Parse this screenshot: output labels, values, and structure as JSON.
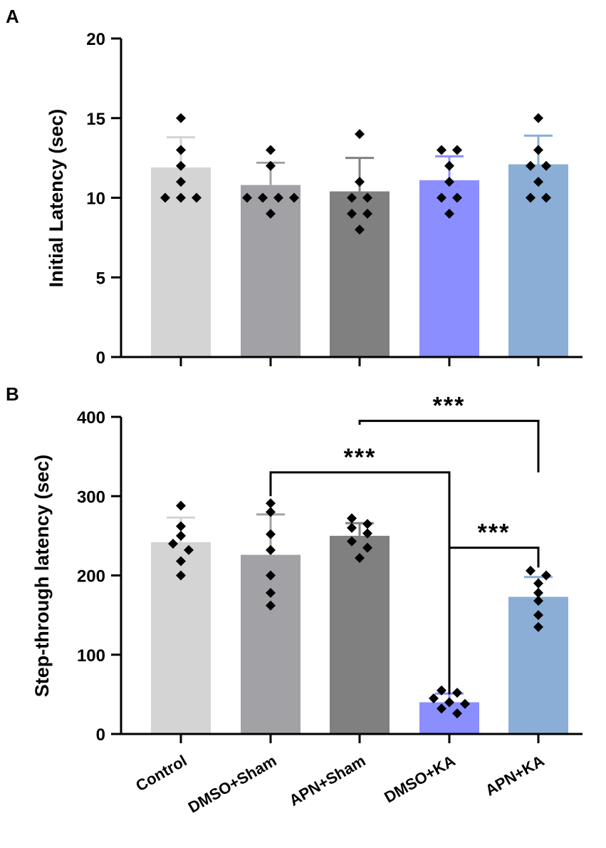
{
  "colors": {
    "bars": [
      "#d4d4d4",
      "#a2a2a6",
      "#808080",
      "#8a8eff",
      "#8aaed6"
    ],
    "errorbars": [
      "#d4d4d4",
      "#a2a2a6",
      "#808080",
      "#8a8eff",
      "#8aaed6"
    ],
    "axis": "#000000",
    "points": "#000000"
  },
  "chart_data": [
    {
      "panel": "A",
      "type": "bar",
      "ylabel": "Initial Latency (sec)",
      "ylim": [
        0,
        20
      ],
      "yticks": [
        0,
        5,
        10,
        15,
        20
      ],
      "ytick_labels": [
        "0",
        "5",
        "10",
        "15",
        "20"
      ],
      "categories": [
        "Control",
        "DMSO+Sham",
        "APN+Sham",
        "DMSO+KA",
        "APN+KA"
      ],
      "show_category_labels": false,
      "values": [
        11.9,
        10.8,
        10.4,
        11.1,
        12.1
      ],
      "errors": [
        1.9,
        1.4,
        2.1,
        1.5,
        1.8
      ],
      "points": [
        [
          15,
          13,
          12,
          11,
          10,
          10,
          10
        ],
        [
          13,
          12,
          10,
          10,
          10,
          10,
          9
        ],
        [
          14,
          11,
          10,
          10,
          9,
          9,
          8
        ],
        [
          13,
          13,
          12,
          11,
          10,
          10,
          9
        ],
        [
          15,
          13,
          12,
          12,
          11,
          10,
          10
        ]
      ],
      "significance": []
    },
    {
      "panel": "B",
      "type": "bar",
      "ylabel": "Step-through latency (sec)",
      "ylim": [
        0,
        400
      ],
      "yticks": [
        0,
        100,
        200,
        300,
        400
      ],
      "ytick_labels": [
        "0",
        "100",
        "200",
        "300",
        "400"
      ],
      "categories": [
        "Control",
        "DMSO+Sham",
        "APN+Sham",
        "DMSO+KA",
        "APN+KA"
      ],
      "show_category_labels": true,
      "values": [
        242,
        226,
        250,
        40,
        173
      ],
      "errors": [
        31,
        51,
        16,
        11,
        25
      ],
      "points": [
        [
          288,
          262,
          250,
          240,
          232,
          218,
          200
        ],
        [
          291,
          280,
          252,
          232,
          200,
          178,
          162
        ],
        [
          272,
          265,
          260,
          253,
          243,
          235,
          222
        ],
        [
          55,
          52,
          45,
          40,
          38,
          32,
          26
        ],
        [
          206,
          200,
          190,
          178,
          168,
          150,
          135
        ]
      ],
      "significance": [
        {
          "from": 1,
          "to": 3,
          "label": "***",
          "y": 330,
          "drop_to": [
            300,
            98
          ]
        },
        {
          "from": 2,
          "to": 4,
          "label": "***",
          "y": 395,
          "drop_to": [
            390,
            330
          ]
        },
        {
          "from": 3,
          "to": 4,
          "label": "***",
          "y": 235,
          "drop_to": [
            50,
            210
          ]
        }
      ]
    }
  ]
}
